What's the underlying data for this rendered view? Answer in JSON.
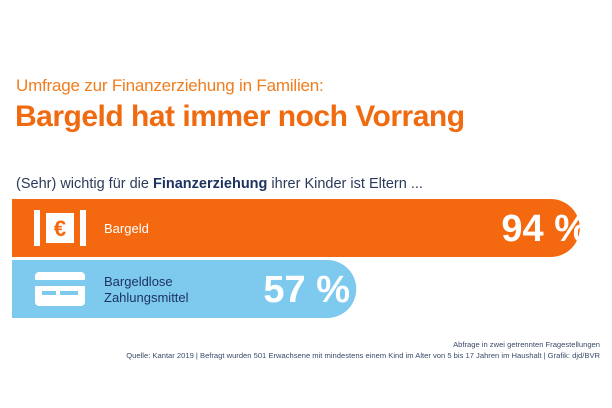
{
  "header": {
    "subtitle": "Umfrage zur Finanzerziehung in Familien:",
    "title": "Bargeld hat immer noch Vorrang"
  },
  "intro": {
    "before": "(Sehr) wichtig für die ",
    "bold": "Finanzerziehung",
    "after": " ihrer Kinder ist Eltern ..."
  },
  "colors": {
    "bar_cash": "#f4690f",
    "bar_cashless": "#7ec9ee",
    "title": "#f06a0f",
    "text_dark": "#1d3461"
  },
  "chart_data": {
    "type": "bar",
    "orientation": "horizontal",
    "categories": [
      "Bargeld",
      "Bargeldlose Zahlungsmittel"
    ],
    "category_lines": [
      [
        "Bargeld"
      ],
      [
        "Bargeldlose",
        "Zahlungsmittel"
      ]
    ],
    "values": [
      94,
      57
    ],
    "value_labels": [
      "94 %",
      "57 %"
    ],
    "icons": [
      "euro-banknote-icon",
      "card-icon"
    ],
    "unit": "%",
    "xlim": [
      0,
      100
    ]
  },
  "footer": {
    "note": "Abfrage in zwei getrennten Fragestellungen",
    "source": "Quelle: Kantar 2019 | Befragt wurden 501 Erwachsene mit mindestens einem Kind im Alter von 5 bis 17 Jahren im Haushalt | Grafik: djd/BVR"
  }
}
